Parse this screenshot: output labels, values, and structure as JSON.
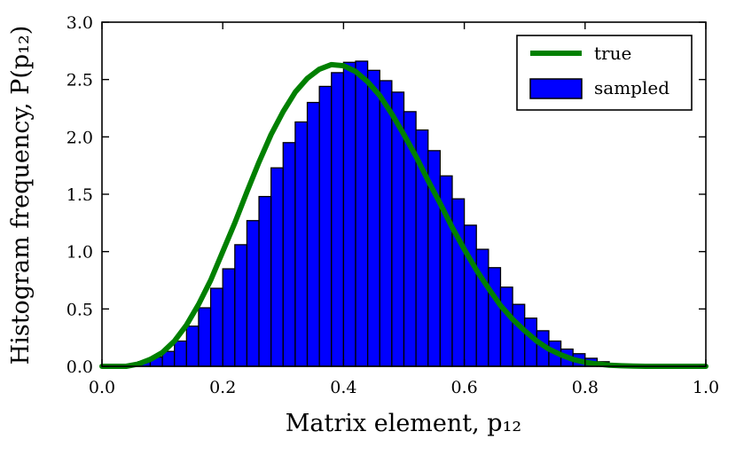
{
  "chart_data": {
    "type": "bar",
    "xlabel": "Matrix element, p₁₂",
    "ylabel": "Histogram frequency, P(p₁₂)",
    "xlim": [
      0.0,
      1.0
    ],
    "ylim": [
      0.0,
      3.0
    ],
    "xticks": [
      "0.0",
      "0.2",
      "0.4",
      "0.6",
      "0.8",
      "1.0"
    ],
    "yticks": [
      "0.0",
      "0.5",
      "1.0",
      "1.5",
      "2.0",
      "2.5",
      "3.0"
    ],
    "grid": false,
    "legend": {
      "position": "top-right",
      "entries": [
        "true",
        "sampled"
      ]
    },
    "series": [
      {
        "name": "sampled",
        "kind": "histogram",
        "bin_width": 0.02,
        "bin_start": 0.06,
        "values": [
          0.04,
          0.08,
          0.13,
          0.22,
          0.35,
          0.51,
          0.68,
          0.85,
          1.06,
          1.27,
          1.48,
          1.73,
          1.95,
          2.13,
          2.3,
          2.44,
          2.56,
          2.65,
          2.66,
          2.58,
          2.49,
          2.39,
          2.22,
          2.06,
          1.88,
          1.66,
          1.46,
          1.23,
          1.02,
          0.86,
          0.69,
          0.54,
          0.42,
          0.31,
          0.22,
          0.15,
          0.11,
          0.07,
          0.04,
          0.02,
          0.01
        ],
        "color": "#0000ff"
      },
      {
        "name": "true",
        "kind": "line",
        "x": [
          0.0,
          0.02,
          0.04,
          0.06,
          0.08,
          0.1,
          0.12,
          0.14,
          0.16,
          0.18,
          0.2,
          0.22,
          0.24,
          0.26,
          0.28,
          0.3,
          0.32,
          0.34,
          0.36,
          0.38,
          0.4,
          0.42,
          0.44,
          0.46,
          0.48,
          0.5,
          0.52,
          0.54,
          0.56,
          0.58,
          0.6,
          0.62,
          0.64,
          0.66,
          0.68,
          0.7,
          0.72,
          0.74,
          0.76,
          0.78,
          0.8,
          0.82,
          0.84,
          0.86,
          0.88,
          0.9,
          0.92,
          0.94,
          0.96,
          0.98,
          1.0
        ],
        "y": [
          0.0,
          0.0,
          0.0,
          0.02,
          0.06,
          0.12,
          0.22,
          0.36,
          0.54,
          0.75,
          1.0,
          1.25,
          1.52,
          1.78,
          2.02,
          2.22,
          2.39,
          2.51,
          2.59,
          2.63,
          2.62,
          2.57,
          2.48,
          2.36,
          2.2,
          2.02,
          1.83,
          1.62,
          1.42,
          1.21,
          1.02,
          0.84,
          0.68,
          0.53,
          0.41,
          0.31,
          0.22,
          0.15,
          0.1,
          0.06,
          0.035,
          0.02,
          0.01,
          0.005,
          0.002,
          0.0,
          0.0,
          0.0,
          0.0,
          0.0,
          0.0
        ],
        "color": "#008000"
      }
    ]
  }
}
